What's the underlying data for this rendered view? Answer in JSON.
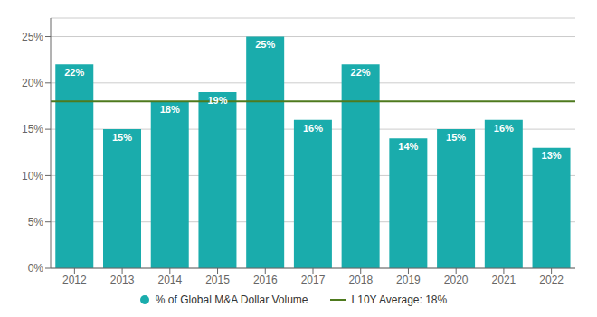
{
  "chart_data": {
    "type": "bar",
    "categories": [
      "2012",
      "2013",
      "2014",
      "2015",
      "2016",
      "2017",
      "2018",
      "2019",
      "2020",
      "2021",
      "2022"
    ],
    "series": [
      {
        "name": "% of Global M&A Dollar Volume",
        "color": "#1AACAC",
        "values": [
          22,
          15,
          18,
          19,
          25,
          16,
          22,
          14,
          15,
          16,
          13
        ],
        "value_labels": [
          "22%",
          "15%",
          "18%",
          "19%",
          "25%",
          "16%",
          "22%",
          "14%",
          "15%",
          "16%",
          "13%"
        ]
      }
    ],
    "average_line": {
      "name": "L10Y Average: 18%",
      "value": 18,
      "color": "#4E7A1E"
    },
    "ylim": [
      0,
      27
    ],
    "yticks": [
      {
        "value": 0,
        "label": "0%"
      },
      {
        "value": 5,
        "label": "5%"
      },
      {
        "value": 10,
        "label": "10%"
      },
      {
        "value": 15,
        "label": "15%"
      },
      {
        "value": 20,
        "label": "20%"
      },
      {
        "value": 25,
        "label": "25%"
      }
    ],
    "grid": true,
    "legend": "bottom",
    "data_labels": true
  }
}
